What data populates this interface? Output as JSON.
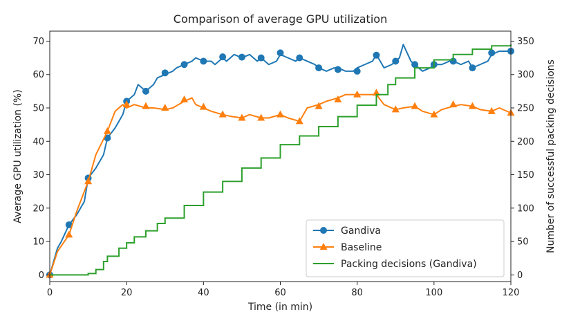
{
  "chart_data": {
    "type": "line",
    "title": "Comparison of average GPU utilization",
    "xlabel": "Time (in min)",
    "ylabel": "Average GPU utilization (%)",
    "y2label": "Number of successful packing decisions",
    "xlim": [
      0,
      120
    ],
    "ylim": [
      -2,
      73
    ],
    "y2lim": [
      -10,
      365
    ],
    "xticks": [
      0,
      20,
      40,
      60,
      80,
      100,
      120
    ],
    "yticks": [
      0,
      10,
      20,
      30,
      40,
      50,
      60,
      70
    ],
    "y2ticks": [
      0,
      50,
      100,
      150,
      200,
      250,
      300,
      350
    ],
    "grid": false,
    "legend_position": "lower-right",
    "colors": {
      "gandiva": "#1f77b4",
      "baseline": "#ff7f0e",
      "packing": "#2ca02c"
    },
    "series": [
      {
        "name": "Gandiva",
        "axis": "left",
        "marker": "circle",
        "x": [
          0,
          1,
          2,
          3,
          5,
          7,
          9,
          10,
          12,
          14,
          15,
          17,
          19,
          20,
          22,
          23,
          24,
          25,
          27,
          28,
          30,
          32,
          33,
          35,
          37,
          38,
          40,
          42,
          43,
          45,
          46,
          48,
          50,
          52,
          54,
          55,
          57,
          59,
          60,
          62,
          64,
          65,
          67,
          69,
          70,
          72,
          74,
          75,
          77,
          79,
          80,
          82,
          84,
          85,
          87,
          89,
          90,
          91,
          92,
          94,
          95,
          97,
          99,
          100,
          102,
          104,
          105,
          107,
          109,
          110,
          112,
          114,
          115,
          117,
          120
        ],
        "y": [
          0,
          4,
          8,
          10,
          15,
          18,
          22,
          29,
          32,
          36,
          41,
          44,
          48,
          52,
          54,
          57,
          56,
          55,
          57,
          59,
          60,
          61,
          62,
          63,
          64,
          65,
          64,
          64,
          63,
          65,
          64,
          66,
          65,
          66,
          64,
          65,
          63,
          64,
          66,
          65,
          64,
          65,
          64,
          63,
          62,
          61,
          62,
          62,
          61,
          61,
          62,
          63,
          64,
          66,
          62,
          63,
          64,
          65,
          69,
          64,
          63,
          61,
          62,
          63,
          63,
          64,
          64,
          63,
          64,
          62,
          63,
          64,
          66,
          67,
          67
        ],
        "marker_x": [
          0,
          5,
          10,
          15,
          20,
          25,
          30,
          35,
          40,
          45,
          50,
          55,
          60,
          65,
          70,
          75,
          80,
          85,
          90,
          95,
          100,
          105,
          110,
          115,
          120
        ],
        "marker_y": [
          0,
          15,
          29,
          41,
          52,
          55,
          60.5,
          63,
          64,
          65.3,
          65.2,
          65,
          66.5,
          65,
          62,
          61.5,
          61,
          65.8,
          64,
          63,
          63,
          64,
          62,
          66.5,
          67
        ]
      },
      {
        "name": "Baseline",
        "axis": "left",
        "marker": "triangle",
        "x": [
          0,
          2,
          5,
          7,
          10,
          12,
          15,
          17,
          19,
          20,
          22,
          25,
          27,
          30,
          32,
          35,
          37,
          38,
          40,
          42,
          45,
          47,
          50,
          52,
          55,
          57,
          60,
          62,
          65,
          67,
          70,
          72,
          75,
          77,
          80,
          82,
          85,
          87,
          90,
          92,
          95,
          97,
          100,
          102,
          105,
          107,
          110,
          112,
          115,
          117,
          120
        ],
        "y": [
          0,
          7,
          12,
          19,
          28,
          36,
          43,
          49,
          51,
          50,
          51,
          50,
          50,
          49.5,
          50,
          52,
          53,
          51,
          50,
          49,
          48,
          47.5,
          47,
          48,
          47,
          47,
          48,
          47,
          46,
          50,
          51,
          52,
          53,
          54,
          54,
          54,
          54,
          51,
          49.5,
          50,
          50.5,
          49,
          48,
          49.5,
          50.5,
          51,
          50.5,
          49.5,
          49,
          50,
          48.5
        ],
        "marker_x": [
          0,
          5,
          10,
          15,
          20,
          25,
          30,
          35,
          40,
          45,
          50,
          55,
          60,
          65,
          70,
          75,
          80,
          85,
          90,
          95,
          100,
          105,
          110,
          115,
          120
        ],
        "marker_y": [
          0,
          12,
          28,
          43,
          51,
          50.5,
          50,
          52.5,
          50.3,
          48,
          47,
          47,
          48,
          46,
          50.5,
          52.5,
          54,
          54.5,
          49.5,
          50.5,
          48,
          51,
          50.5,
          49,
          48.5
        ]
      },
      {
        "name": "Packing decisions (Gandiva)",
        "axis": "right",
        "marker": "none",
        "x": [
          0,
          5,
          8,
          10,
          12,
          14,
          15,
          18,
          20,
          22,
          25,
          28,
          30,
          35,
          40,
          45,
          50,
          55,
          60,
          65,
          70,
          75,
          80,
          85,
          88,
          90,
          95,
          100,
          105,
          110,
          115,
          120
        ],
        "y": [
          0,
          0,
          0,
          2,
          8,
          20,
          28,
          40,
          48,
          57,
          66,
          77,
          85,
          104,
          124,
          140,
          160,
          175,
          195,
          208,
          222,
          237,
          254,
          270,
          285,
          295,
          310,
          322,
          330,
          338,
          343,
          345
        ]
      }
    ]
  }
}
